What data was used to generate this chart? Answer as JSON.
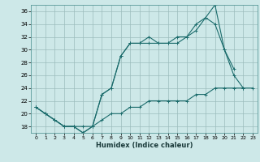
{
  "title": "",
  "xlabel": "Humidex (Indice chaleur)",
  "bg_color": "#cde8e8",
  "line_color": "#1a6b6b",
  "grid_color": "#9bbcbc",
  "xlim": [
    -0.5,
    23.5
  ],
  "ylim": [
    17,
    37
  ],
  "xticks": [
    0,
    1,
    2,
    3,
    4,
    5,
    6,
    7,
    8,
    9,
    10,
    11,
    12,
    13,
    14,
    15,
    16,
    17,
    18,
    19,
    20,
    21,
    22,
    23
  ],
  "yticks": [
    18,
    20,
    22,
    24,
    26,
    28,
    30,
    32,
    34,
    36
  ],
  "line1_x": [
    0,
    1,
    2,
    3,
    4,
    5,
    6,
    7,
    8,
    9,
    10,
    11,
    12,
    13,
    14,
    15,
    16,
    17,
    18,
    19,
    20,
    21,
    22,
    23
  ],
  "line1_y": [
    21,
    20,
    19,
    18,
    18,
    18,
    18,
    19,
    20,
    20,
    21,
    21,
    22,
    22,
    22,
    22,
    22,
    23,
    23,
    24,
    24,
    24,
    24,
    24
  ],
  "line2_x": [
    0,
    1,
    2,
    3,
    4,
    5,
    6,
    7,
    8,
    9,
    10,
    11,
    12,
    13,
    14,
    15,
    16,
    17,
    18,
    19,
    20,
    21,
    22,
    23
  ],
  "line2_y": [
    21,
    20,
    19,
    18,
    18,
    17,
    18,
    23,
    24,
    29,
    31,
    31,
    31,
    31,
    31,
    31,
    32,
    33,
    35,
    34,
    30,
    26,
    24,
    null
  ],
  "line3_x": [
    0,
    1,
    2,
    3,
    4,
    5,
    6,
    7,
    8,
    9,
    10,
    11,
    12,
    13,
    14,
    15,
    16,
    17,
    18,
    19,
    20,
    21,
    22,
    23
  ],
  "line3_y": [
    21,
    20,
    19,
    18,
    18,
    17,
    18,
    23,
    24,
    29,
    31,
    31,
    32,
    31,
    31,
    32,
    32,
    34,
    35,
    37,
    30,
    27,
    null,
    null
  ]
}
